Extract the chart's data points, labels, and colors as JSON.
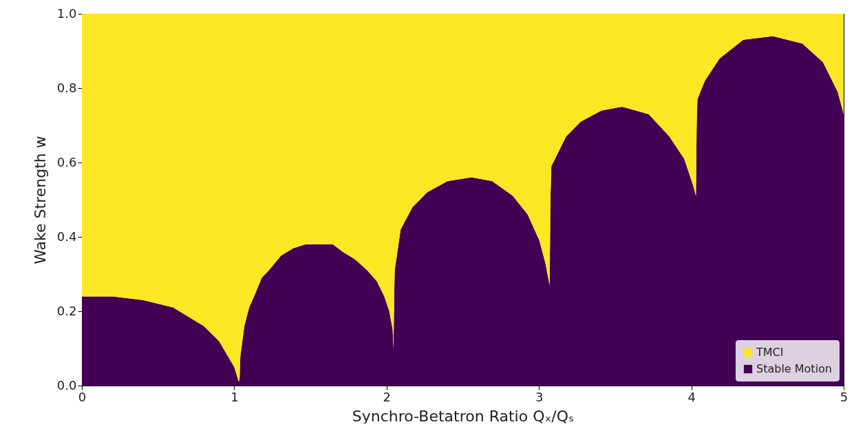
{
  "chart_data": {
    "type": "area",
    "stacked": true,
    "xlabel": "Synchro-Betatron Ratio Qₓ/Qₛ",
    "ylabel": "Wake Strength w",
    "x": [
      0,
      0.2,
      0.4,
      0.6,
      0.8,
      0.9,
      1.0,
      1.03,
      1.035,
      1.04,
      1.05,
      1.066,
      1.098,
      1.13,
      1.18,
      1.227,
      1.308,
      1.389,
      1.469,
      1.55,
      1.647,
      1.711,
      1.792,
      1.873,
      1.937,
      1.985,
      2.018,
      2.04,
      2.045,
      2.05,
      2.053,
      2.092,
      2.17,
      2.266,
      2.4,
      2.557,
      2.693,
      2.829,
      2.926,
      3.003,
      3.042,
      3.07,
      3.075,
      3.081,
      3.178,
      3.275,
      3.41,
      3.546,
      3.72,
      3.856,
      3.953,
      4.011,
      4.03,
      4.035,
      4.04,
      4.089,
      4.186,
      4.341,
      4.535,
      4.729,
      4.864,
      4.961,
      5.0
    ],
    "series": [
      {
        "name": "Stable Motion",
        "color": "#440154",
        "values": [
          0.24,
          0.24,
          0.23,
          0.21,
          0.16,
          0.12,
          0.05,
          0.01,
          0.02,
          0.08,
          0.11,
          0.16,
          0.21,
          0.24,
          0.29,
          0.31,
          0.35,
          0.37,
          0.38,
          0.38,
          0.38,
          0.36,
          0.34,
          0.31,
          0.28,
          0.24,
          0.2,
          0.15,
          0.1,
          0.25,
          0.31,
          0.42,
          0.48,
          0.52,
          0.55,
          0.56,
          0.55,
          0.51,
          0.46,
          0.39,
          0.33,
          0.27,
          0.5,
          0.59,
          0.67,
          0.71,
          0.74,
          0.75,
          0.73,
          0.67,
          0.61,
          0.54,
          0.51,
          0.7,
          0.77,
          0.82,
          0.88,
          0.93,
          0.94,
          0.92,
          0.87,
          0.79,
          0.73
        ]
      },
      {
        "name": "TMCI",
        "color": "#fde725",
        "values": [
          0.76,
          0.76,
          0.77,
          0.79,
          0.84,
          0.88,
          0.95,
          0.99,
          0.98,
          0.92,
          0.89,
          0.84,
          0.79,
          0.76,
          0.71,
          0.69,
          0.65,
          0.63,
          0.62,
          0.62,
          0.62,
          0.64,
          0.66,
          0.69,
          0.72,
          0.76,
          0.8,
          0.85,
          0.9,
          0.75,
          0.69,
          0.58,
          0.52,
          0.48,
          0.45,
          0.44,
          0.45,
          0.49,
          0.54,
          0.61,
          0.67,
          0.73,
          0.5,
          0.41,
          0.33,
          0.29,
          0.26,
          0.25,
          0.27,
          0.33,
          0.39,
          0.46,
          0.49,
          0.3,
          0.23,
          0.18,
          0.12,
          0.07,
          0.06,
          0.08,
          0.13,
          0.21,
          0.27
        ]
      }
    ],
    "xlim": [
      0,
      5
    ],
    "xticks": [
      0,
      1,
      2,
      3,
      4,
      5
    ],
    "ylim": [
      0,
      1
    ],
    "yticks": [
      {
        "value": 0,
        "label": "0.0"
      },
      {
        "value": 0.2,
        "label": "0.2"
      },
      {
        "value": 0.4,
        "label": "0.4"
      },
      {
        "value": 0.6,
        "label": "0.6"
      },
      {
        "value": 0.8,
        "label": "0.8"
      },
      {
        "value": 1,
        "label": "1.0"
      }
    ],
    "legend": "bottom right"
  }
}
